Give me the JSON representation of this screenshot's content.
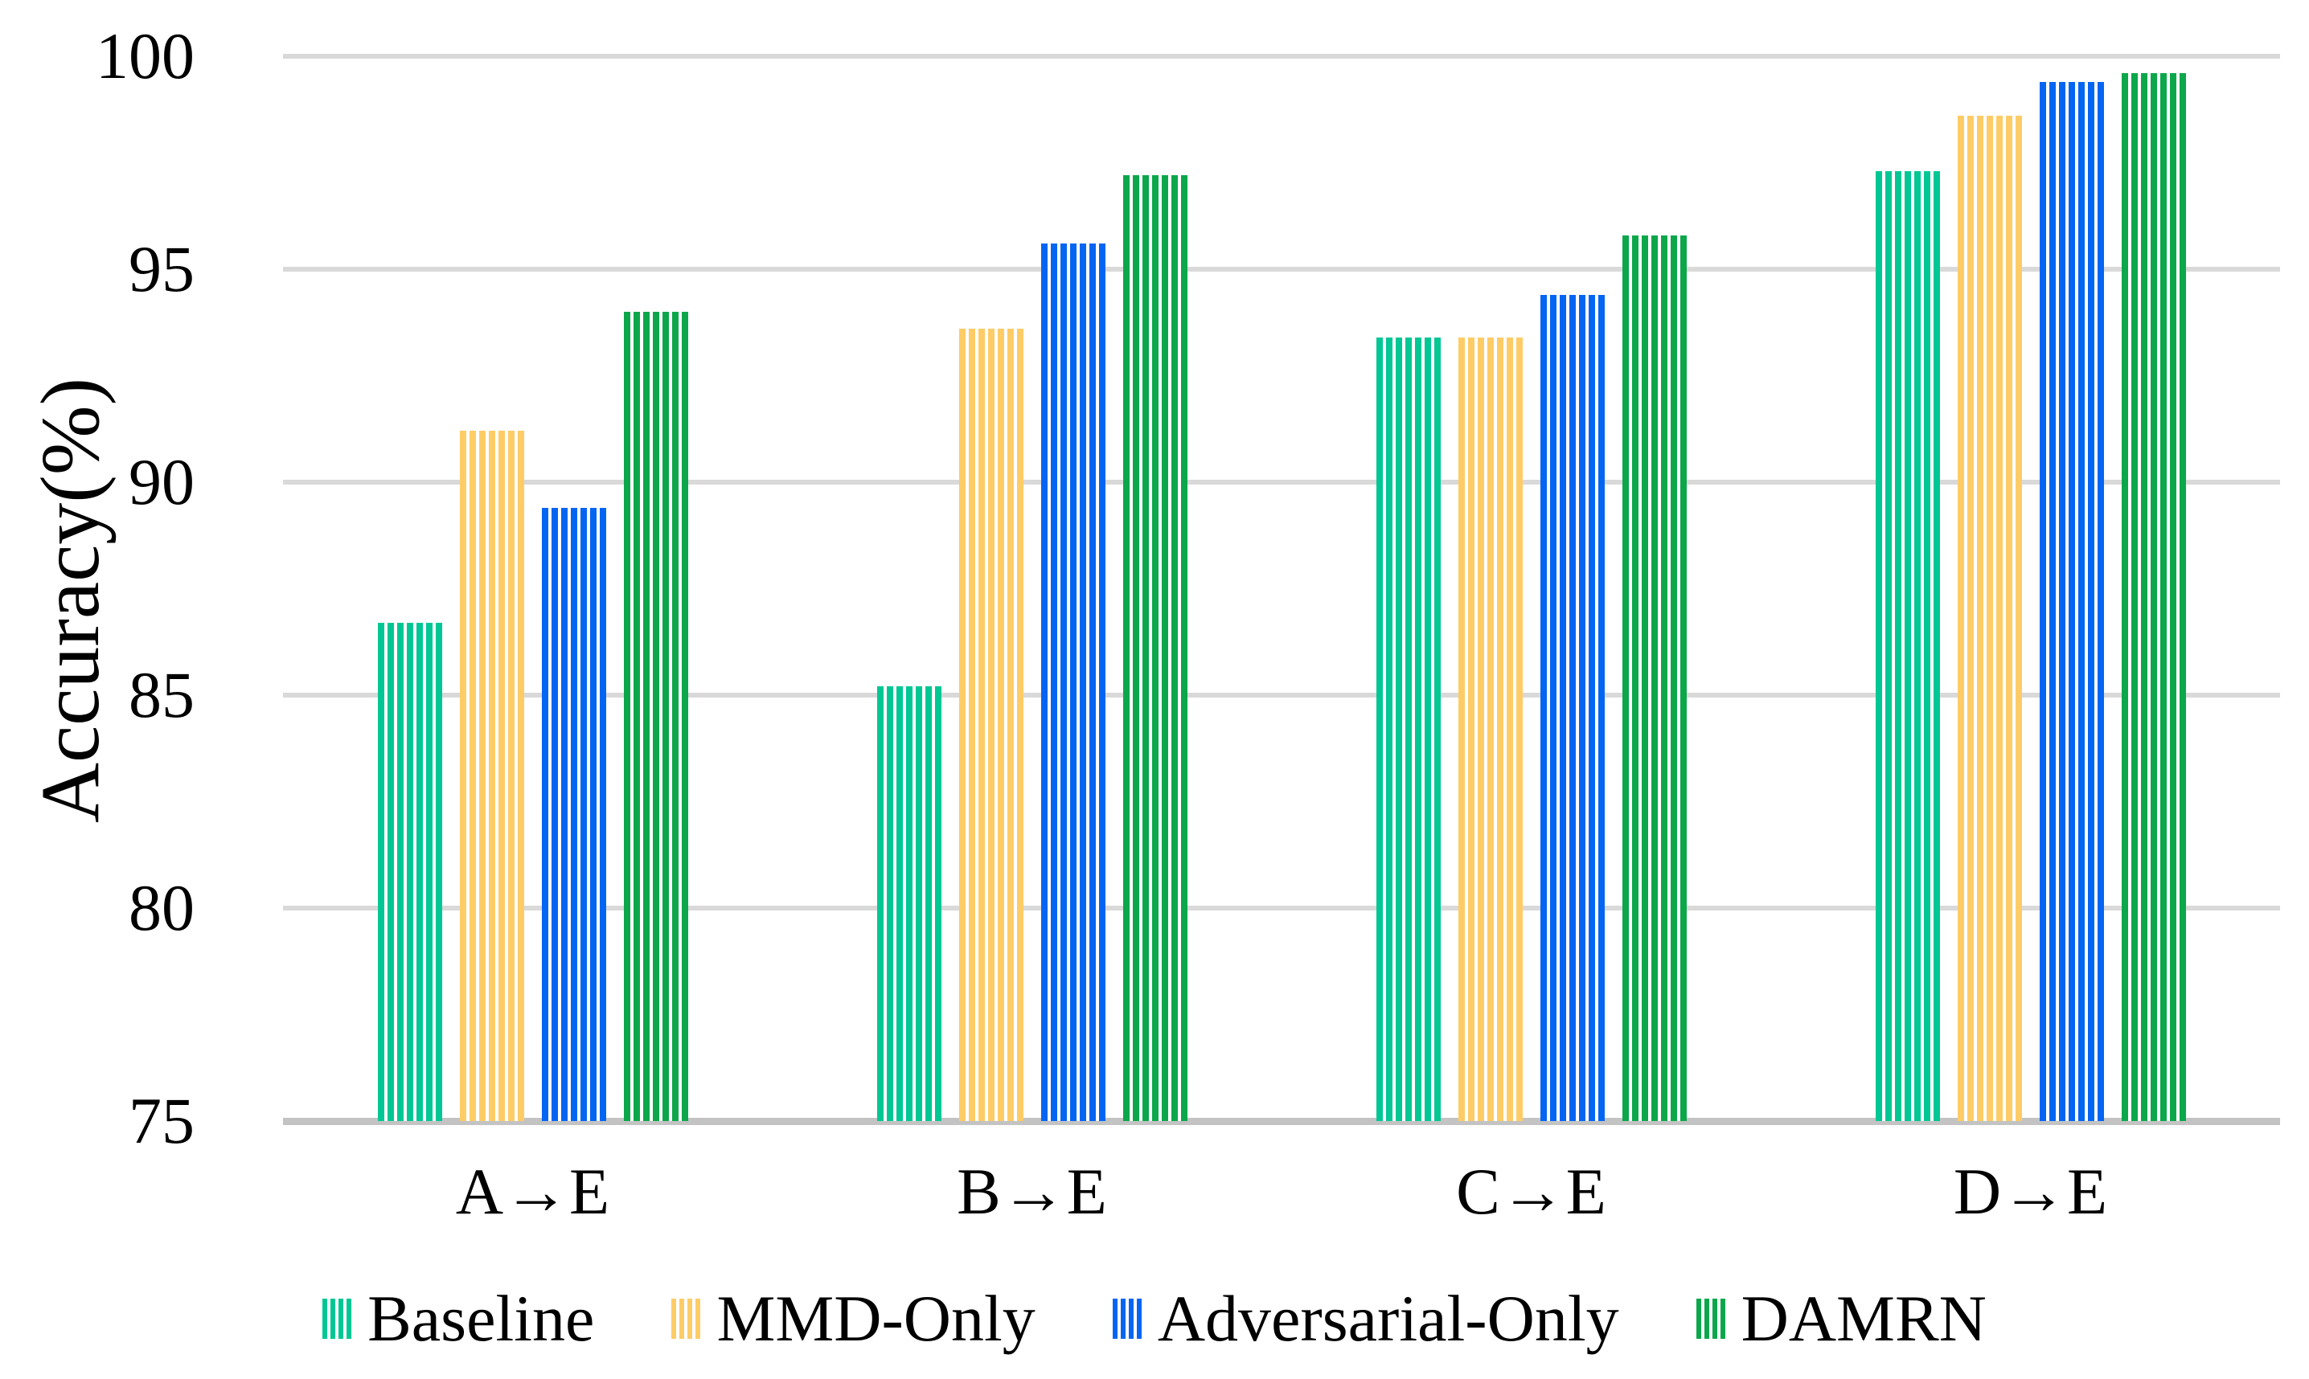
{
  "figure_title": "",
  "y_axis": {
    "title": "Accuracy(%)",
    "tick_labels": [
      "75",
      "80",
      "85",
      "90",
      "95",
      "100"
    ]
  },
  "x_axis": {
    "tick_labels": [
      "A→E",
      "B→E",
      "C→E",
      "D→E"
    ]
  },
  "legend": {
    "labels": [
      "Baseline",
      "MMD-Only",
      "Adversarial-Only",
      "DAMRN"
    ]
  },
  "colors": {
    "baseline_teal": "#00C794",
    "mmd_yellow": "#FECC67",
    "adversarial_blue": "#0565F3",
    "damrn_green": "#0CA74B",
    "gridline_gray": "#D9D9D9",
    "axis_baseline_gray": "#C3C3C3"
  },
  "chart_data": {
    "type": "bar",
    "categories": [
      "A→E",
      "B→E",
      "C→E",
      "D→E"
    ],
    "series": [
      {
        "name": "Baseline",
        "color": "#00C794",
        "values": [
          86.7,
          85.2,
          93.4,
          97.3
        ]
      },
      {
        "name": "MMD-Only",
        "color": "#FECC67",
        "values": [
          91.2,
          93.6,
          93.4,
          98.6
        ]
      },
      {
        "name": "Adversarial-Only",
        "color": "#0565F3",
        "values": [
          89.4,
          95.6,
          94.4,
          99.4
        ]
      },
      {
        "name": "DAMRN",
        "color": "#0CA74B",
        "values": [
          94.0,
          97.2,
          95.8,
          99.6
        ]
      }
    ],
    "title": "",
    "xlabel": "",
    "ylabel": "Accuracy(%)",
    "ylim": [
      75,
      100
    ],
    "yticks": [
      75,
      80,
      85,
      90,
      95,
      100
    ],
    "grid": true,
    "bar_style": "vertical-stripes",
    "legend_position": "bottom"
  }
}
